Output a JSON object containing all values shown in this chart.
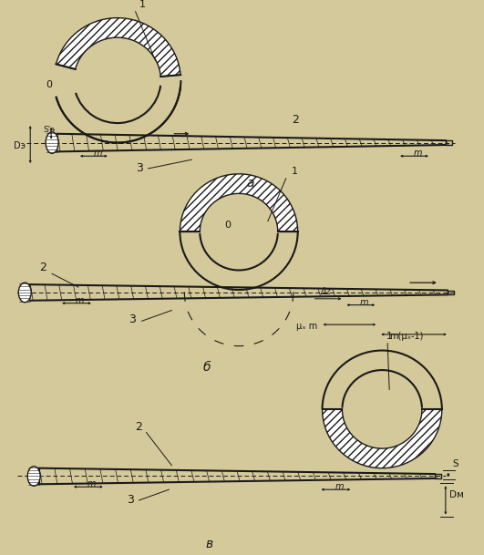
{
  "bg_color": "#d4c99a",
  "line_color": "#1a1a1a",
  "fig_width": 5.31,
  "fig_height": 6.09,
  "panel_a_label": "a",
  "panel_b_label": "б",
  "panel_v_label": "в"
}
